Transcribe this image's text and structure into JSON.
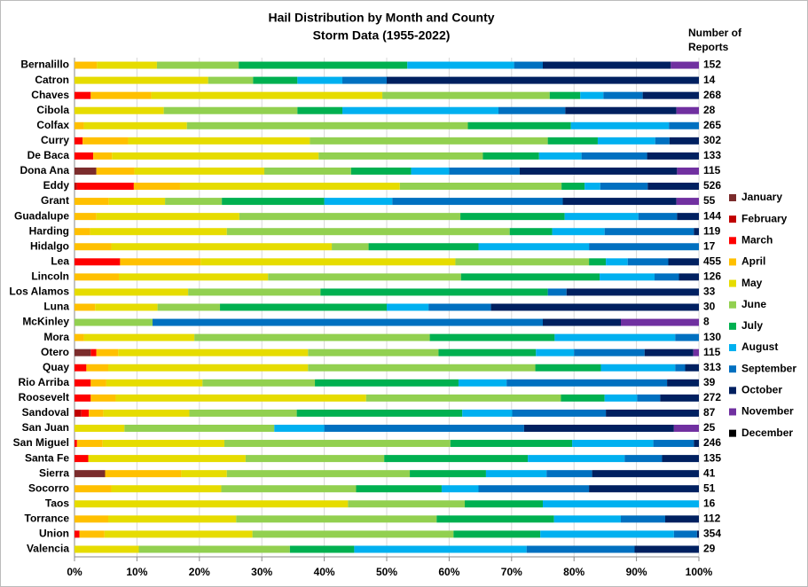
{
  "chart_data": {
    "type": "stacked_bar_100",
    "title": "Hail Distribution by Month and County",
    "subtitle": "Storm Data (1955-2022)",
    "counts_label": "Number of Reports",
    "categories": [
      "Bernalillo",
      "Catron",
      "Chaves",
      "Cibola",
      "Colfax",
      "Curry",
      "De Baca",
      "Dona Ana",
      "Eddy",
      "Grant",
      "Guadalupe",
      "Harding",
      "Hidalgo",
      "Lea",
      "Lincoln",
      "Los Alamos",
      "Luna",
      "McKinley",
      "Mora",
      "Otero",
      "Quay",
      "Rio Arriba",
      "Roosevelt",
      "Sandoval",
      "San Juan",
      "San Miguel",
      "Santa Fe",
      "Sierra",
      "Socorro",
      "Taos",
      "Torrance",
      "Union",
      "Valencia"
    ],
    "counts": [
      152,
      14,
      268,
      28,
      265,
      302,
      133,
      115,
      526,
      55,
      144,
      119,
      17,
      455,
      126,
      33,
      30,
      8,
      130,
      115,
      313,
      39,
      272,
      87,
      25,
      246,
      135,
      41,
      51,
      16,
      112,
      354,
      29
    ],
    "series": [
      {
        "name": "January",
        "color": "#7b2c2c",
        "values": [
          0,
          0,
          0,
          0,
          0,
          0,
          0,
          3.5,
          0,
          0,
          0,
          0,
          0,
          0,
          0,
          0,
          0,
          0,
          0,
          2.6,
          0,
          0,
          0,
          0,
          0,
          0,
          0,
          4.9,
          0,
          0,
          0,
          0,
          0
        ]
      },
      {
        "name": "February",
        "color": "#c00000",
        "values": [
          0,
          0,
          0,
          0,
          0,
          0,
          0,
          0,
          0.4,
          0,
          0,
          0,
          0,
          0,
          0,
          0,
          0,
          0,
          0,
          0,
          0,
          0,
          0,
          1.1,
          0,
          0,
          0,
          0,
          0,
          0,
          0,
          0,
          0
        ]
      },
      {
        "name": "March",
        "color": "#ff0000",
        "values": [
          0,
          0,
          2.6,
          0,
          0,
          1.3,
          3,
          0,
          9.1,
          0,
          0,
          0,
          0,
          7.3,
          0,
          0,
          0,
          0,
          0,
          0.9,
          1.9,
          2.6,
          2.6,
          1.2,
          0,
          0.4,
          2.2,
          0,
          0,
          0,
          0,
          0.8,
          0
        ]
      },
      {
        "name": "April",
        "color": "#ffc000",
        "values": [
          3.6,
          0,
          9.7,
          0,
          1.5,
          7.3,
          3,
          6.1,
          7.4,
          5.5,
          3.5,
          2.5,
          5.9,
          12.9,
          7.1,
          0,
          3.3,
          0,
          1.5,
          3.5,
          3.5,
          2.5,
          4,
          2.3,
          0,
          4.1,
          0,
          12.2,
          5.9,
          0,
          5.4,
          4,
          0
        ]
      },
      {
        "name": "May",
        "color": "#e6dc00",
        "values": [
          9.6,
          21.4,
          37,
          14.3,
          16.5,
          29.1,
          33.1,
          20.8,
          35.2,
          9,
          22.9,
          21.9,
          35.3,
          40.8,
          23.9,
          18.2,
          10,
          0,
          17.7,
          30.4,
          32,
          15.4,
          40.1,
          13.8,
          8,
          19.5,
          25.2,
          7.3,
          17.6,
          43.8,
          20.5,
          23.7,
          10.3
        ]
      },
      {
        "name": "June",
        "color": "#92d050",
        "values": [
          13.1,
          7.2,
          26.8,
          21.4,
          45,
          38.1,
          26.3,
          13.9,
          25.9,
          9.1,
          35.4,
          45.3,
          5.9,
          21.4,
          30.9,
          21.2,
          10,
          12.5,
          37.7,
          20.9,
          36.4,
          18,
          31.2,
          17.2,
          24,
          36.2,
          22.2,
          29.3,
          21.6,
          18.7,
          32.1,
          32.2,
          24.2
        ]
      },
      {
        "name": "July",
        "color": "#00b050",
        "values": [
          27,
          7.1,
          4.9,
          7.2,
          16.5,
          8,
          9,
          9.6,
          3.7,
          16.4,
          16.7,
          6.8,
          17.6,
          2.7,
          22.2,
          36.4,
          26.7,
          0,
          20,
          15.6,
          10.5,
          23,
          7,
          26.5,
          0,
          19.5,
          23,
          12.2,
          13.7,
          12.5,
          18.8,
          13.9,
          10.3
        ]
      },
      {
        "name": "August",
        "color": "#00b0f0",
        "values": [
          17.1,
          7.2,
          3.7,
          25,
          15.7,
          9.2,
          6.8,
          6.1,
          2.5,
          10.9,
          11.8,
          8.4,
          17.7,
          3.5,
          8.8,
          0,
          6.7,
          0,
          19.3,
          6.1,
          11.9,
          7.7,
          5.2,
          8,
          8,
          13,
          15.5,
          9.7,
          5.9,
          25,
          10.7,
          21.4,
          27.6
        ]
      },
      {
        "name": "September",
        "color": "#0070c0",
        "values": [
          4.6,
          7.1,
          6.3,
          10.7,
          4.8,
          2.3,
          10.5,
          11.3,
          7.6,
          27.3,
          6.2,
          14.3,
          17.6,
          6.5,
          3.9,
          3,
          10,
          62.5,
          3.8,
          11.3,
          1.6,
          25.7,
          3.7,
          15,
          32,
          6.5,
          6,
          7.3,
          17.7,
          0,
          7.1,
          3.7,
          17.3
        ]
      },
      {
        "name": "October",
        "color": "#002060",
        "values": [
          20.5,
          50,
          9,
          17.8,
          0,
          4.7,
          8.3,
          25.2,
          8.2,
          18.2,
          3.5,
          0.8,
          0,
          4.9,
          3.2,
          21.2,
          33.3,
          12.5,
          0,
          7.8,
          2.2,
          5.1,
          6.2,
          14.9,
          24,
          0.8,
          5.9,
          17.1,
          17.6,
          0,
          5.4,
          0.3,
          10.3
        ]
      },
      {
        "name": "November",
        "color": "#7030a0",
        "values": [
          4.5,
          0,
          0,
          3.6,
          0,
          0,
          0,
          3.5,
          0,
          3.6,
          0,
          0,
          0,
          0,
          0,
          0,
          0,
          12.5,
          0,
          0.9,
          0,
          0,
          0,
          0,
          4,
          0,
          0,
          0,
          0,
          0,
          0,
          0,
          0
        ]
      },
      {
        "name": "December",
        "color": "#000000",
        "values": [
          0,
          0,
          0,
          0,
          0,
          0,
          0,
          0,
          0,
          0,
          0,
          0,
          0,
          0,
          0,
          0,
          0,
          0,
          0,
          0,
          0,
          0,
          0,
          0,
          0,
          0,
          0,
          0,
          0,
          0,
          0,
          0,
          0
        ]
      }
    ],
    "xlim": [
      0,
      100
    ],
    "xticks": [
      {
        "value": 0,
        "label": "0%"
      },
      {
        "value": 10,
        "label": "10%"
      },
      {
        "value": 20,
        "label": "20%"
      },
      {
        "value": 30,
        "label": "30%"
      },
      {
        "value": 40,
        "label": "40%"
      },
      {
        "value": 50,
        "label": "50%"
      },
      {
        "value": 60,
        "label": "60%"
      },
      {
        "value": 70,
        "label": "70%"
      },
      {
        "value": 80,
        "label": "80%"
      },
      {
        "value": 90,
        "label": "90%"
      },
      {
        "value": 100,
        "label": "100%"
      }
    ],
    "grid": true,
    "legend": "right"
  }
}
